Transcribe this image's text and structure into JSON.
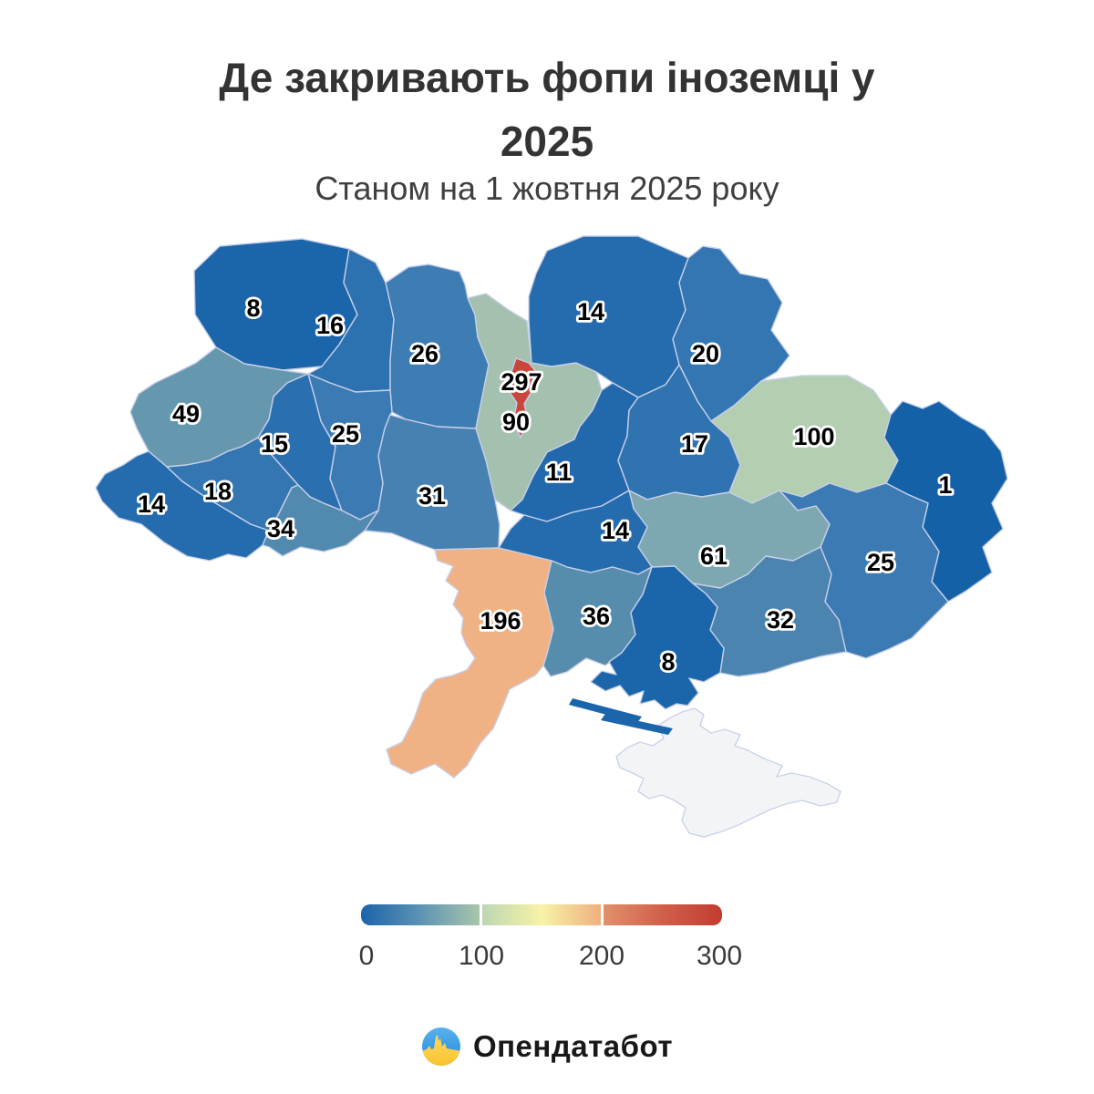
{
  "title": {
    "line1": "Де закривають фопи іноземці у",
    "line2": "2025",
    "subtitle": "Станом на 1 жовтня 2025 року"
  },
  "chart_data": {
    "type": "choropleth",
    "map_of": "Ukraine oblasts",
    "title": "Де закривають фопи іноземці у 2025",
    "subtitle": "Станом на 1 жовтня 2025 року",
    "colorbar": {
      "min": 0,
      "max": 300,
      "ticks": [
        0,
        100,
        200,
        300
      ]
    },
    "regions": [
      {
        "id": "volyn",
        "name": "Volyn",
        "value": 8,
        "color": "#1b65ab"
      },
      {
        "id": "rivne",
        "name": "Rivne",
        "value": 16,
        "color": "#2c71b0"
      },
      {
        "id": "zhytomyr",
        "name": "Zhytomyr",
        "value": 26,
        "color": "#3e7cb4"
      },
      {
        "id": "kyiv_oblast",
        "name": "Kyiv Oblast",
        "value": 90,
        "color": "#a3c1ae"
      },
      {
        "id": "chernihiv",
        "name": "Chernihiv",
        "value": 14,
        "color": "#256cae"
      },
      {
        "id": "sumy",
        "name": "Sumy",
        "value": 20,
        "color": "#3376b2"
      },
      {
        "id": "lviv",
        "name": "Lviv",
        "value": 49,
        "color": "#6598ae"
      },
      {
        "id": "ternopil",
        "name": "Ternopil",
        "value": 15,
        "color": "#2a6fb0"
      },
      {
        "id": "khmelnytskyi",
        "name": "Khmelnytskyi",
        "value": 25,
        "color": "#3b7ab3"
      },
      {
        "id": "vinnytsia",
        "name": "Vinnytsia",
        "value": 31,
        "color": "#4781b2"
      },
      {
        "id": "cherkasy",
        "name": "Cherkasy",
        "value": 11,
        "color": "#2268ac"
      },
      {
        "id": "poltava",
        "name": "Poltava",
        "value": 17,
        "color": "#3073b1"
      },
      {
        "id": "kharkiv",
        "name": "Kharkiv",
        "value": 100,
        "color": "#b3ceb1"
      },
      {
        "id": "luhansk",
        "name": "Luhansk",
        "value": 1,
        "color": "#1561a8"
      },
      {
        "id": "donetsk",
        "name": "Donetsk",
        "value": 25,
        "color": "#3b7ab3"
      },
      {
        "id": "dnipro",
        "name": "Dnipro",
        "value": 61,
        "color": "#7da8b2"
      },
      {
        "id": "zaporizhzhia",
        "name": "Zaporizhzhia",
        "value": 32,
        "color": "#4b84af"
      },
      {
        "id": "kirovohrad",
        "name": "Kirovohrad",
        "value": 14,
        "color": "#256cae"
      },
      {
        "id": "mykolaiv",
        "name": "Mykolaiv",
        "value": 36,
        "color": "#568dad"
      },
      {
        "id": "kherson",
        "name": "Kherson",
        "value": 8,
        "color": "#1b65ab"
      },
      {
        "id": "odesa",
        "name": "Odesa",
        "value": 196,
        "color": "#f0b284"
      },
      {
        "id": "zakarpattia",
        "name": "Zakarpattia",
        "value": 14,
        "color": "#256cae"
      },
      {
        "id": "ivano_frankivsk",
        "name": "Ivano-Frankivsk",
        "value": 18,
        "color": "#3376b2"
      },
      {
        "id": "chernivtsi",
        "name": "Chernivtsi",
        "value": 34,
        "color": "#528aaf"
      },
      {
        "id": "kyiv_city",
        "name": "Kyiv City",
        "value": 297,
        "color": "#c9463c"
      }
    ],
    "no_data_region": {
      "id": "crimea",
      "name": "Crimea",
      "value": null,
      "color": "#f3f4f6"
    }
  },
  "legend": {
    "ticks": [
      "0",
      "100",
      "200",
      "300"
    ],
    "segment_gradients": [
      [
        "#1a63ab",
        "#5d93b4",
        "#a9c6ab"
      ],
      [
        "#bdd6b3",
        "#f7f3a6",
        "#efb07e"
      ],
      [
        "#e2906c",
        "#d05f4a",
        "#c23c30"
      ]
    ]
  },
  "footer": {
    "brand": "Опендатабот",
    "logo_colors": {
      "blue_top": "#5ab2ec",
      "blue_bottom": "#1e88df",
      "yellow_top": "#ffd95e",
      "yellow_bottom": "#f9c22c"
    }
  }
}
